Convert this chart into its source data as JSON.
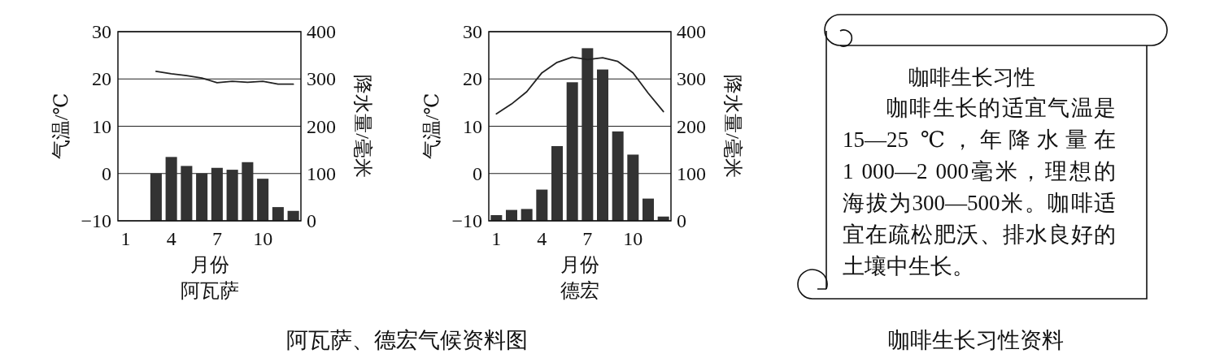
{
  "chart_data": [
    {
      "type": "bar",
      "title": "阿瓦萨",
      "xlabel": "月份",
      "ylabel": "气温/℃",
      "y2label": "降水量/毫米",
      "xlim": [
        0.5,
        12.5
      ],
      "xticks": [
        1,
        4,
        7,
        10
      ],
      "ylim": [
        -10,
        30
      ],
      "yticks": [
        {
          "value": -10,
          "label": "−10"
        },
        0,
        10,
        20,
        30
      ],
      "y2lim": [
        0,
        400
      ],
      "y2ticks": [
        0,
        100,
        200,
        300,
        400
      ],
      "grid": "y",
      "annotations": [
        "阿瓦萨、德宏气候资料图"
      ],
      "series": [
        {
          "type": "bar",
          "axis": "y2",
          "color": "#333333",
          "x": [
            3,
            4,
            5,
            6,
            7,
            8,
            9,
            10,
            11,
            12
          ],
          "values": [
            100,
            135,
            116,
            100,
            112,
            108,
            124,
            89,
            29,
            21
          ]
        },
        {
          "type": "line",
          "color": "#222222",
          "x": [
            3,
            4,
            5,
            6,
            7,
            8,
            9,
            10,
            11,
            12
          ],
          "values": [
            21.6,
            21.1,
            20.7,
            20.2,
            19.2,
            19.5,
            19.3,
            19.5,
            18.9,
            18.9
          ]
        }
      ]
    },
    {
      "type": "bar",
      "title": "德宏",
      "xlabel": "月份",
      "ylabel": "气温/℃",
      "y2label": "降水量/毫米",
      "x": [
        1,
        2,
        3,
        4,
        5,
        6,
        7,
        8,
        9,
        10,
        11,
        12
      ],
      "xlim": [
        0.5,
        12.5
      ],
      "xticks": [
        1,
        4,
        7,
        10
      ],
      "ylim": [
        -10,
        30
      ],
      "yticks": [
        {
          "value": -10,
          "label": "−10"
        },
        0,
        10,
        20,
        30
      ],
      "y2lim": [
        0,
        400
      ],
      "y2ticks": [
        0,
        100,
        200,
        300,
        400
      ],
      "grid": "y",
      "series": [
        {
          "type": "bar",
          "axis": "y2",
          "color": "#333333",
          "values": [
            12,
            23,
            25,
            66,
            158,
            293,
            365,
            320,
            189,
            140,
            47,
            9
          ]
        },
        {
          "type": "line",
          "color": "#222222",
          "values": [
            12.6,
            14.7,
            17.3,
            21.3,
            23.5,
            24.6,
            24.1,
            24.5,
            23.7,
            21.3,
            17.0,
            13.1
          ]
        }
      ]
    },
    {
      "type": "other",
      "title": "咖啡生长习性",
      "annotations": [
        "咖啡生长的适宜气温是15—25 ℃，年降水量在1 000—2 000毫米，理想的海拔为300—500米。咖啡适宜在疏松肥沃、排水良好的土壤中生长。",
        "咖啡生长习性资料"
      ]
    }
  ]
}
